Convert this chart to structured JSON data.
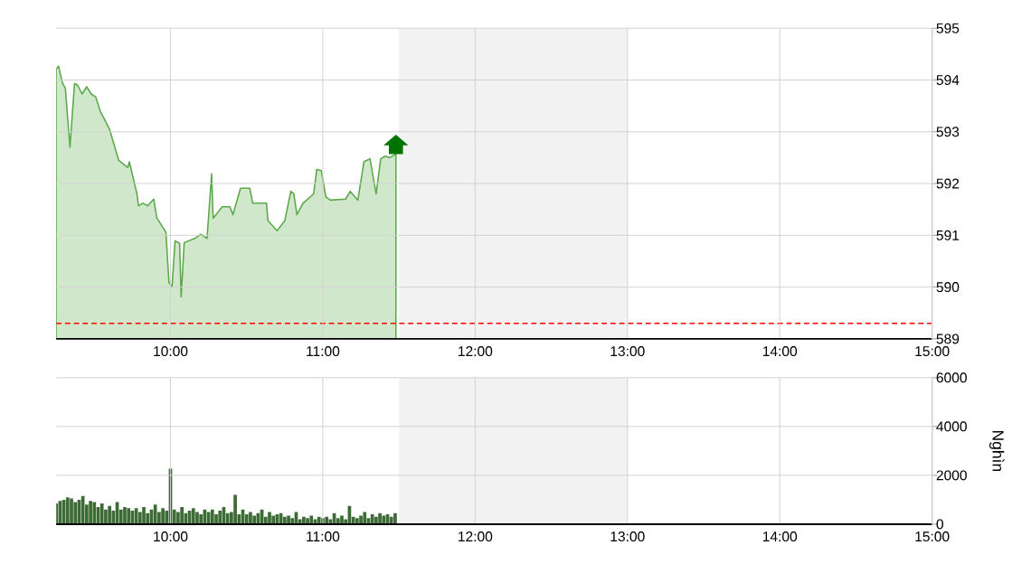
{
  "chart_data": [
    {
      "type": "area",
      "color": "#5aa84a",
      "x": [
        9.25,
        9.265,
        9.29,
        9.31,
        9.34,
        9.37,
        9.39,
        9.42,
        9.45,
        9.48,
        9.51,
        9.54,
        9.6,
        9.66,
        9.72,
        9.73,
        9.78,
        9.79,
        9.82,
        9.85,
        9.89,
        9.91,
        9.97,
        9.99,
        10.01,
        10.03,
        10.06,
        10.07,
        10.09,
        10.16,
        10.2,
        10.24,
        10.27,
        10.28,
        10.34,
        10.39,
        10.41,
        10.46,
        10.52,
        10.54,
        10.63,
        10.64,
        10.7,
        10.75,
        10.79,
        10.81,
        10.83,
        10.87,
        10.94,
        10.96,
        10.99,
        11.02,
        11.05,
        11.15,
        11.18,
        11.23,
        11.27,
        11.31,
        11.35,
        11.38,
        11.41,
        11.44,
        11.48
      ],
      "values": [
        594.21,
        594.27,
        593.95,
        593.84,
        592.7,
        593.93,
        593.9,
        593.73,
        593.87,
        593.73,
        593.67,
        593.39,
        593.05,
        592.45,
        592.31,
        592.42,
        591.8,
        591.57,
        591.62,
        591.57,
        591.7,
        591.34,
        591.06,
        590.09,
        590.0,
        590.89,
        590.85,
        589.81,
        590.86,
        590.94,
        591.02,
        590.94,
        592.19,
        591.33,
        591.55,
        591.55,
        591.4,
        591.91,
        591.91,
        591.62,
        591.62,
        591.28,
        591.09,
        591.28,
        591.85,
        591.8,
        591.4,
        591.62,
        591.8,
        592.27,
        592.25,
        591.74,
        591.68,
        591.7,
        591.85,
        591.68,
        592.42,
        592.48,
        591.8,
        592.48,
        592.53,
        592.5,
        592.57
      ],
      "xlim": [
        9.25,
        15
      ],
      "xticks": [
        {
          "value": 10,
          "label": "10:00"
        },
        {
          "value": 11,
          "label": "11:00"
        },
        {
          "value": 12,
          "label": "12:00"
        },
        {
          "value": 13,
          "label": "13:00"
        },
        {
          "value": 14,
          "label": "14:00"
        },
        {
          "value": 15,
          "label": "15:00"
        }
      ],
      "ylim": [
        589,
        595
      ],
      "yticks": [
        589,
        590,
        591,
        592,
        593,
        594,
        595
      ],
      "grid": true,
      "bands": [
        {
          "axis": "x",
          "from": 11.5,
          "to": 13,
          "color": "#f2f2f2"
        }
      ],
      "ref_lines": [
        {
          "axis": "y",
          "value": 589.3,
          "color": "#ff0000",
          "line_style": "dashed"
        }
      ]
    },
    {
      "type": "bar",
      "color": "#3d6b35",
      "ylabel": "Nghìn",
      "x": [
        9.25,
        9.275,
        9.3,
        9.325,
        9.35,
        9.375,
        9.4,
        9.425,
        9.45,
        9.475,
        9.5,
        9.525,
        9.55,
        9.575,
        9.6,
        9.625,
        9.65,
        9.675,
        9.7,
        9.725,
        9.75,
        9.775,
        9.8,
        9.825,
        9.85,
        9.875,
        9.9,
        9.925,
        9.95,
        9.975,
        10.0,
        10.025,
        10.05,
        10.075,
        10.1,
        10.125,
        10.15,
        10.175,
        10.2,
        10.225,
        10.25,
        10.275,
        10.3,
        10.325,
        10.35,
        10.375,
        10.4,
        10.425,
        10.45,
        10.475,
        10.5,
        10.525,
        10.55,
        10.575,
        10.6,
        10.625,
        10.65,
        10.675,
        10.7,
        10.725,
        10.75,
        10.775,
        10.8,
        10.825,
        10.85,
        10.875,
        10.9,
        10.925,
        10.95,
        10.975,
        11.0,
        11.025,
        11.05,
        11.075,
        11.1,
        11.125,
        11.15,
        11.175,
        11.2,
        11.225,
        11.25,
        11.275,
        11.3,
        11.325,
        11.35,
        11.375,
        11.4,
        11.425,
        11.45,
        11.475
      ],
      "values": [
        850,
        950,
        1000,
        1100,
        1050,
        900,
        1000,
        1150,
        800,
        950,
        900,
        700,
        850,
        600,
        750,
        550,
        900,
        600,
        700,
        650,
        550,
        650,
        500,
        700,
        450,
        600,
        800,
        500,
        650,
        550,
        2270,
        600,
        500,
        700,
        450,
        550,
        650,
        500,
        400,
        600,
        500,
        600,
        400,
        550,
        700,
        450,
        500,
        1200,
        400,
        600,
        400,
        500,
        350,
        450,
        600,
        300,
        500,
        350,
        400,
        450,
        300,
        350,
        250,
        500,
        200,
        300,
        250,
        350,
        200,
        300,
        250,
        300,
        200,
        450,
        250,
        350,
        200,
        750,
        300,
        250,
        350,
        500,
        250,
        400,
        300,
        450,
        350,
        400,
        300,
        450
      ],
      "xlim": [
        9.25,
        15
      ],
      "xticks": [
        {
          "value": 10,
          "label": "10:00"
        },
        {
          "value": 11,
          "label": "11:00"
        },
        {
          "value": 12,
          "label": "12:00"
        },
        {
          "value": 13,
          "label": "13:00"
        },
        {
          "value": 14,
          "label": "14:00"
        },
        {
          "value": 15,
          "label": "15:00"
        }
      ],
      "ylim": [
        0,
        6000
      ],
      "yticks": [
        0,
        2000,
        4000,
        6000
      ],
      "grid": true,
      "bands": [
        {
          "axis": "x",
          "from": 11.5,
          "to": 13,
          "color": "#f2f2f2"
        }
      ]
    }
  ]
}
